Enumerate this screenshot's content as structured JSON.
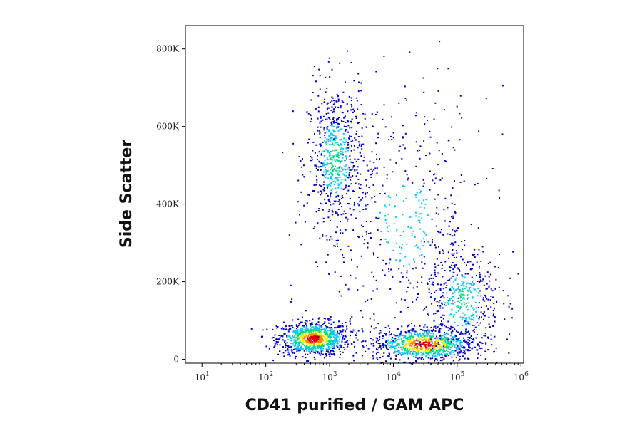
{
  "chart_data": {
    "type": "scatter",
    "title": "",
    "xlabel": "CD41 purified / GAM APC",
    "ylabel": "Side Scatter",
    "x_scale": "log",
    "x_tick_labels": [
      {
        "base": "10",
        "exp": "1"
      },
      {
        "base": "10",
        "exp": "2"
      },
      {
        "base": "10",
        "exp": "3"
      },
      {
        "base": "10",
        "exp": "4"
      },
      {
        "base": "10",
        "exp": "5"
      },
      {
        "base": "10",
        "exp": "6"
      }
    ],
    "x_tick_values": [
      10,
      100,
      1000,
      10000,
      100000,
      1000000
    ],
    "y_tick_labels": [
      "0",
      "200K",
      "400K",
      "600K",
      "800K"
    ],
    "y_tick_values": [
      0,
      200000,
      400000,
      600000,
      800000
    ],
    "xlim": [
      5.5,
      1100000
    ],
    "ylim": [
      -10000,
      860000
    ],
    "grid": false,
    "legend": "none",
    "color_scale": [
      "#0000cc",
      "#00c8ff",
      "#00d890",
      "#f0f000",
      "#ff8800",
      "#e00000"
    ],
    "populations": [
      {
        "x_center": 550,
        "y_center": 55000,
        "count": 900,
        "note_density": "high"
      },
      {
        "x_center": 1200,
        "y_center": 520000,
        "count": 650,
        "note_density": "medium"
      },
      {
        "x_center": 30000,
        "y_center": 40000,
        "count": 900,
        "note_density": "high"
      },
      {
        "x_center": 120000,
        "y_center": 150000,
        "count": 450,
        "note_density": "medium"
      },
      {
        "x_center": 15000,
        "y_center": 350000,
        "count": 500,
        "note_density": "low"
      }
    ]
  }
}
